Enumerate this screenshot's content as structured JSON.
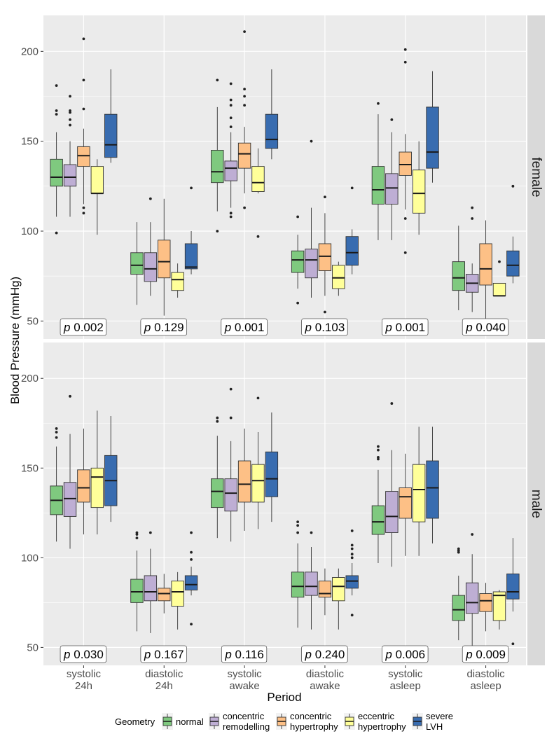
{
  "chart_data": {
    "type": "boxplot",
    "ylabel": "Blood Pressure (mmHg)",
    "xlabel": "Period",
    "ylim": [
      40,
      220
    ],
    "yticks": [
      50,
      100,
      150,
      200
    ],
    "categories": [
      "systolic\n24h",
      "diastolic\n24h",
      "systolic\nawake",
      "diastolic\nawake",
      "systolic\nasleep",
      "diastolic\nasleep"
    ],
    "legend": {
      "title": "Geometry",
      "position": "bottom",
      "items": [
        {
          "name": "normal",
          "color": "#7fc97f"
        },
        {
          "name": "concentric\nremodelling",
          "color": "#beaed4"
        },
        {
          "name": "concentric\nhypertrophy",
          "color": "#fdc086"
        },
        {
          "name": "eccentric\nhypertrophy",
          "color": "#ffff99"
        },
        {
          "name": "severe\nLVH",
          "color": "#386cb0"
        }
      ]
    },
    "panels": [
      {
        "label": "female",
        "p_values": [
          "0.002",
          "0.129",
          "0.001",
          "0.103",
          "0.001",
          "0.040"
        ],
        "boxes": [
          [
            {
              "lw": 108,
              "q1": 125,
              "med": 130,
              "q3": 140,
              "uw": 155,
              "out": [
                181,
                167,
                165,
                99
              ]
            },
            {
              "lw": 108,
              "q1": 125,
              "med": 130,
              "q3": 137,
              "uw": 150,
              "out": [
                175,
                167,
                166,
                162,
                159
              ]
            },
            {
              "lw": 115,
              "q1": 136,
              "med": 142,
              "q3": 147,
              "uw": 157,
              "out": [
                207,
                184,
                168,
                113,
                110
              ]
            },
            {
              "lw": 98,
              "q1": 121,
              "med": 121,
              "q3": 136,
              "uw": 140,
              "out": []
            },
            {
              "lw": 138,
              "q1": 141,
              "med": 148,
              "q3": 165,
              "uw": 190,
              "out": []
            }
          ],
          [
            {
              "lw": 59,
              "q1": 76,
              "med": 81,
              "q3": 88,
              "uw": 105,
              "out": []
            },
            {
              "lw": 64,
              "q1": 72,
              "med": 79,
              "q3": 88,
              "uw": 105,
              "out": [
                118
              ]
            },
            {
              "lw": 53,
              "q1": 74,
              "med": 83,
              "q3": 95,
              "uw": 118,
              "out": []
            },
            {
              "lw": 63,
              "q1": 67,
              "med": 73,
              "q3": 77,
              "uw": 82,
              "out": []
            },
            {
              "lw": 76,
              "q1": 79,
              "med": 80,
              "q3": 93,
              "uw": 100,
              "out": [
                124
              ]
            }
          ],
          [
            {
              "lw": 111,
              "q1": 127,
              "med": 133,
              "q3": 145,
              "uw": 169,
              "out": [
                184,
                100
              ]
            },
            {
              "lw": 113,
              "q1": 128,
              "med": 135,
              "q3": 139,
              "uw": 155,
              "out": [
                182,
                173,
                170,
                163,
                158,
                110,
                108
              ]
            },
            {
              "lw": 121,
              "q1": 135,
              "med": 143,
              "q3": 149,
              "uw": 158,
              "out": [
                211,
                179,
                175,
                170,
                113
              ]
            },
            {
              "lw": 121,
              "q1": 122,
              "med": 127,
              "q3": 136,
              "uw": 146,
              "out": [
                97
              ]
            },
            {
              "lw": 140,
              "q1": 146,
              "med": 151,
              "q3": 165,
              "uw": 190,
              "out": []
            }
          ],
          [
            {
              "lw": 68,
              "q1": 77,
              "med": 84,
              "q3": 89,
              "uw": 98,
              "out": [
                108,
                60
              ]
            },
            {
              "lw": 63,
              "q1": 74,
              "med": 84,
              "q3": 90,
              "uw": 113,
              "out": [
                150
              ]
            },
            {
              "lw": 64,
              "q1": 78,
              "med": 86,
              "q3": 93,
              "uw": 110,
              "out": [
                119,
                55
              ]
            },
            {
              "lw": 64,
              "q1": 68,
              "med": 74,
              "q3": 81,
              "uw": 83,
              "out": []
            },
            {
              "lw": 76,
              "q1": 81,
              "med": 88,
              "q3": 97,
              "uw": 101,
              "out": [
                124
              ]
            }
          ],
          [
            {
              "lw": 95,
              "q1": 115,
              "med": 123,
              "q3": 136,
              "uw": 165,
              "out": [
                171
              ]
            },
            {
              "lw": 95,
              "q1": 115,
              "med": 124,
              "q3": 132,
              "uw": 155,
              "out": [
                162
              ]
            },
            {
              "lw": 112,
              "q1": 131,
              "med": 137,
              "q3": 144,
              "uw": 154,
              "out": [
                201,
                194,
                107,
                88
              ]
            },
            {
              "lw": 98,
              "q1": 110,
              "med": 121,
              "q3": 134,
              "uw": 150,
              "out": []
            },
            {
              "lw": 127,
              "q1": 135,
              "med": 144,
              "q3": 169,
              "uw": 189,
              "out": []
            }
          ],
          [
            {
              "lw": 56,
              "q1": 67,
              "med": 74,
              "q3": 83,
              "uw": 103,
              "out": []
            },
            {
              "lw": 55,
              "q1": 66,
              "med": 71,
              "q3": 76,
              "uw": 82,
              "out": [
                113,
                107
              ]
            },
            {
              "lw": 42,
              "q1": 70,
              "med": 79,
              "q3": 93,
              "uw": 106,
              "out": []
            },
            {
              "lw": 64,
              "q1": 64,
              "med": 64,
              "q3": 71,
              "uw": 71,
              "out": [
                83
              ]
            },
            {
              "lw": 71,
              "q1": 75,
              "med": 81,
              "q3": 89,
              "uw": 97,
              "out": [
                125
              ]
            }
          ]
        ]
      },
      {
        "label": "male",
        "p_values": [
          "0.030",
          "0.167",
          "0.116",
          "0.240",
          "0.006",
          "0.009"
        ],
        "boxes": [
          [
            {
              "lw": 109,
              "q1": 124,
              "med": 132,
              "q3": 140,
              "uw": 162,
              "out": [
                172,
                170,
                167
              ]
            },
            {
              "lw": 105,
              "q1": 123,
              "med": 133,
              "q3": 142,
              "uw": 169,
              "out": [
                190
              ]
            },
            {
              "lw": 113,
              "q1": 131,
              "med": 139,
              "q3": 149,
              "uw": 172,
              "out": []
            },
            {
              "lw": 113,
              "q1": 128,
              "med": 145,
              "q3": 150,
              "uw": 182,
              "out": []
            },
            {
              "lw": 120,
              "q1": 129,
              "med": 143,
              "q3": 157,
              "uw": 179,
              "out": []
            }
          ],
          [
            {
              "lw": 59,
              "q1": 75,
              "med": 81,
              "q3": 88,
              "uw": 104,
              "out": [
                114,
                113,
                111
              ]
            },
            {
              "lw": 58,
              "q1": 76,
              "med": 81,
              "q3": 90,
              "uw": 105,
              "out": [
                114
              ]
            },
            {
              "lw": 69,
              "q1": 76,
              "med": 80,
              "q3": 83,
              "uw": 91,
              "out": []
            },
            {
              "lw": 60,
              "q1": 73,
              "med": 81,
              "q3": 87,
              "uw": 92,
              "out": []
            },
            {
              "lw": 79,
              "q1": 82,
              "med": 85,
              "q3": 90,
              "uw": 95,
              "out": [
                114,
                103,
                99,
                63
              ]
            }
          ],
          [
            {
              "lw": 111,
              "q1": 128,
              "med": 137,
              "q3": 144,
              "uw": 168,
              "out": [
                178,
                176
              ]
            },
            {
              "lw": 109,
              "q1": 126,
              "med": 136,
              "q3": 144,
              "uw": 165,
              "out": [
                194,
                178
              ]
            },
            {
              "lw": 115,
              "q1": 131,
              "med": 141,
              "q3": 154,
              "uw": 172,
              "out": []
            },
            {
              "lw": 116,
              "q1": 131,
              "med": 143,
              "q3": 152,
              "uw": 170,
              "out": [
                189
              ]
            },
            {
              "lw": 120,
              "q1": 134,
              "med": 144,
              "q3": 159,
              "uw": 181,
              "out": []
            }
          ],
          [
            {
              "lw": 61,
              "q1": 78,
              "med": 84,
              "q3": 92,
              "uw": 108,
              "out": [
                120,
                118,
                114
              ]
            },
            {
              "lw": 60,
              "q1": 79,
              "med": 84,
              "q3": 92,
              "uw": 106,
              "out": [
                114
              ]
            },
            {
              "lw": 68,
              "q1": 78,
              "med": 80,
              "q3": 87,
              "uw": 94,
              "out": []
            },
            {
              "lw": 60,
              "q1": 76,
              "med": 84,
              "q3": 89,
              "uw": 94,
              "out": []
            },
            {
              "lw": 79,
              "q1": 83,
              "med": 87,
              "q3": 90,
              "uw": 97,
              "out": [
                115,
                107,
                105,
                102,
                100,
                68
              ]
            }
          ],
          [
            {
              "lw": 97,
              "q1": 113,
              "med": 120,
              "q3": 129,
              "uw": 149,
              "out": [
                162,
                160,
                156,
                155
              ]
            },
            {
              "lw": 95,
              "q1": 114,
              "med": 123,
              "q3": 137,
              "uw": 160,
              "out": [
                186
              ]
            },
            {
              "lw": 101,
              "q1": 122,
              "med": 134,
              "q3": 139,
              "uw": 158,
              "out": []
            },
            {
              "lw": 101,
              "q1": 120,
              "med": 138,
              "q3": 152,
              "uw": 173,
              "out": []
            },
            {
              "lw": 108,
              "q1": 122,
              "med": 139,
              "q3": 154,
              "uw": 173,
              "out": []
            }
          ],
          [
            {
              "lw": 54,
              "q1": 65,
              "med": 71,
              "q3": 79,
              "uw": 90,
              "out": [
                105,
                104,
                103
              ]
            },
            {
              "lw": 50,
              "q1": 69,
              "med": 75,
              "q3": 86,
              "uw": 102,
              "out": [
                113
              ]
            },
            {
              "lw": 59,
              "q1": 70,
              "med": 76,
              "q3": 80,
              "uw": 86,
              "out": []
            },
            {
              "lw": 60,
              "q1": 65,
              "med": 79,
              "q3": 81,
              "uw": 82,
              "out": []
            },
            {
              "lw": 70,
              "q1": 77,
              "med": 81,
              "q3": 91,
              "uw": 111,
              "out": [
                52
              ]
            }
          ]
        ]
      }
    ]
  }
}
